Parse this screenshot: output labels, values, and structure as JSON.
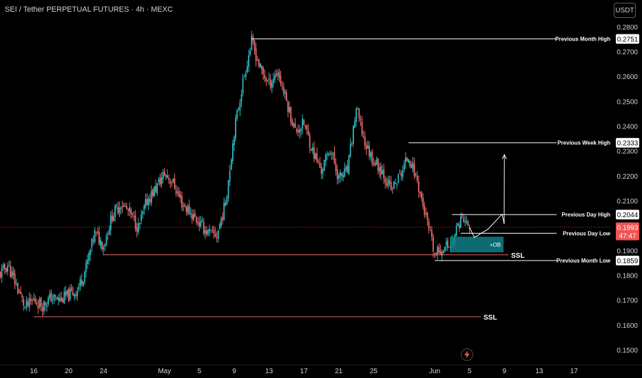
{
  "header": {
    "title": "SEI / Tether PERPETUAL FUTURES · 4h · MEXC",
    "currency": "USDT"
  },
  "colors": {
    "background": "#000000",
    "up": "#2ebbc6",
    "down": "#ef6b6b",
    "text": "#d1d4dc",
    "level_line": "#ffffff",
    "ssl_line": "#e36a6a",
    "order_block": "#0e7f86",
    "price_tag": "#ef5350"
  },
  "icons": [
    "lightning-icon"
  ],
  "chart_data": {
    "type": "candlestick",
    "timeframe": "4h",
    "y_axis": {
      "ylim": [
        0.145,
        0.283
      ],
      "ticks": [
        0.28,
        0.27,
        0.26,
        0.25,
        0.24,
        0.23,
        0.22,
        0.21,
        0.19,
        0.18,
        0.17,
        0.16,
        0.15
      ],
      "tick_labels": [
        "0.2800",
        "0.2700",
        "0.2600",
        "0.2500",
        "0.2400",
        "0.2300",
        "0.2200",
        "0.2100",
        "0.1900",
        "0.1800",
        "0.1700",
        "0.1600",
        "0.1500"
      ]
    },
    "x_axis": {
      "labels": [
        "16",
        "20",
        "24",
        "May",
        "5",
        "9",
        "13",
        "17",
        "21",
        "25",
        "Jun",
        "5",
        "9",
        "13",
        "17"
      ]
    },
    "current_price": {
      "value": 0.1993,
      "label": "0.1993",
      "countdown": "47:47"
    },
    "levels": [
      {
        "name": "Previous Month High",
        "value": 0.2751,
        "label": "0.2751"
      },
      {
        "name": "Previous Week High",
        "value": 0.2333,
        "label": "0.2333"
      },
      {
        "name": "Previous Day High",
        "value": 0.2044,
        "label": "0.2044"
      },
      {
        "name": "Previous Day Low",
        "value": 0.1969,
        "label": "0.1969"
      },
      {
        "name": "Previous Month Low",
        "value": 0.1859,
        "label": "0.1859"
      }
    ],
    "annotations": {
      "ssl_upper": {
        "text": "SSL",
        "value": 0.1882
      },
      "ssl_lower": {
        "text": "SSL",
        "value": 0.1633
      },
      "order_block": {
        "text": "+OB",
        "top": 0.1955,
        "bottom": 0.1892
      }
    },
    "price_path": [
      {
        "date": "2024-04-12",
        "price": 0.18
      },
      {
        "date": "2024-04-13",
        "price": 0.184
      },
      {
        "date": "2024-04-14",
        "price": 0.176
      },
      {
        "date": "2024-04-15",
        "price": 0.167
      },
      {
        "date": "2024-04-16",
        "price": 0.17
      },
      {
        "date": "2024-04-17",
        "price": 0.168
      },
      {
        "date": "2024-04-18",
        "price": 0.171
      },
      {
        "date": "2024-04-19",
        "price": 0.17
      },
      {
        "date": "2024-04-20",
        "price": 0.172
      },
      {
        "date": "2024-04-21",
        "price": 0.174
      },
      {
        "date": "2024-04-22",
        "price": 0.183
      },
      {
        "date": "2024-04-23",
        "price": 0.197
      },
      {
        "date": "2024-04-24",
        "price": 0.192
      },
      {
        "date": "2024-04-25",
        "price": 0.204
      },
      {
        "date": "2024-04-26",
        "price": 0.209
      },
      {
        "date": "2024-04-27",
        "price": 0.205
      },
      {
        "date": "2024-04-28",
        "price": 0.199
      },
      {
        "date": "2024-04-29",
        "price": 0.21
      },
      {
        "date": "2024-04-30",
        "price": 0.215
      },
      {
        "date": "2024-05-01",
        "price": 0.221
      },
      {
        "date": "2024-05-02",
        "price": 0.217
      },
      {
        "date": "2024-05-03",
        "price": 0.209
      },
      {
        "date": "2024-05-04",
        "price": 0.205
      },
      {
        "date": "2024-05-05",
        "price": 0.201
      },
      {
        "date": "2024-05-06",
        "price": 0.197
      },
      {
        "date": "2024-05-07",
        "price": 0.196
      },
      {
        "date": "2024-05-08",
        "price": 0.209
      },
      {
        "date": "2024-05-09",
        "price": 0.238
      },
      {
        "date": "2024-05-10",
        "price": 0.258
      },
      {
        "date": "2024-05-11",
        "price": 0.274
      },
      {
        "date": "2024-05-12",
        "price": 0.263
      },
      {
        "date": "2024-05-13",
        "price": 0.257
      },
      {
        "date": "2024-05-14",
        "price": 0.262
      },
      {
        "date": "2024-05-15",
        "price": 0.25
      },
      {
        "date": "2024-05-16",
        "price": 0.238
      },
      {
        "date": "2024-05-17",
        "price": 0.241
      },
      {
        "date": "2024-05-18",
        "price": 0.23
      },
      {
        "date": "2024-05-19",
        "price": 0.222
      },
      {
        "date": "2024-05-20",
        "price": 0.231
      },
      {
        "date": "2024-05-21",
        "price": 0.219
      },
      {
        "date": "2024-05-22",
        "price": 0.222
      },
      {
        "date": "2024-05-23",
        "price": 0.247
      },
      {
        "date": "2024-05-24",
        "price": 0.233
      },
      {
        "date": "2024-05-25",
        "price": 0.226
      },
      {
        "date": "2024-05-26",
        "price": 0.222
      },
      {
        "date": "2024-05-27",
        "price": 0.214
      },
      {
        "date": "2024-05-28",
        "price": 0.22
      },
      {
        "date": "2024-05-29",
        "price": 0.228
      },
      {
        "date": "2024-05-30",
        "price": 0.218
      },
      {
        "date": "2024-05-31",
        "price": 0.203
      },
      {
        "date": "2024-06-01",
        "price": 0.188
      },
      {
        "date": "2024-06-02",
        "price": 0.191
      },
      {
        "date": "2024-06-03",
        "price": 0.193
      },
      {
        "date": "2024-06-04",
        "price": 0.203
      },
      {
        "date": "2024-06-05",
        "price": 0.1993
      }
    ],
    "projection": [
      {
        "date": "2024-06-05",
        "price": 0.1993
      },
      {
        "date": "2024-06-05",
        "price": 0.1952
      },
      {
        "date": "2024-06-06",
        "price": 0.1985
      },
      {
        "date": "2024-06-07",
        "price": 0.2046
      },
      {
        "date": "2024-06-07",
        "price": 0.2006
      },
      {
        "date": "2024-06-09",
        "price": 0.2285
      }
    ]
  }
}
